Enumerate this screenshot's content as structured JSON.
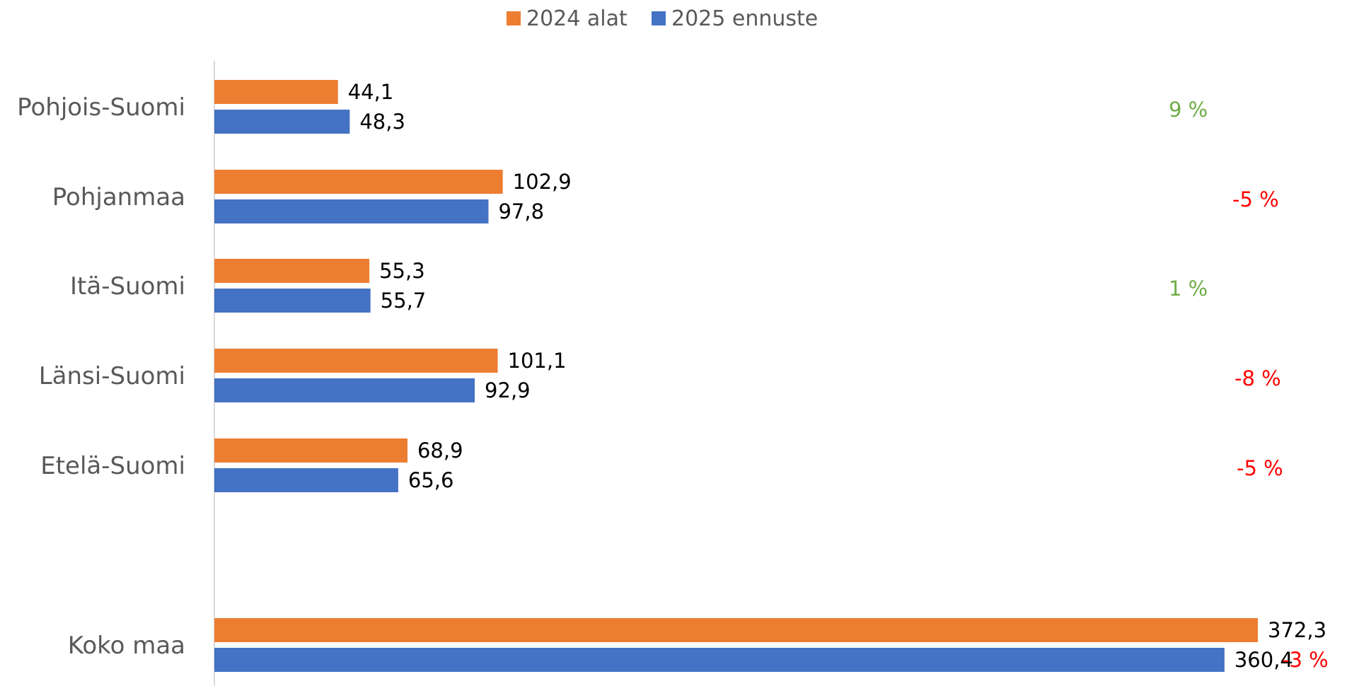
{
  "chart_data": {
    "type": "bar",
    "orientation": "horizontal",
    "categories": [
      "Pohjois-Suomi",
      "Pohjanmaa",
      "Itä-Suomi",
      "Länsi-Suomi",
      "Etelä-Suomi",
      "Koko maa"
    ],
    "series": [
      {
        "name": "2024 alat",
        "color": "#ED7D31",
        "values": [
          44.1,
          102.9,
          55.3,
          101.1,
          68.9,
          372.3
        ],
        "labels": [
          "44,1",
          "102,9",
          "55,3",
          "101,1",
          "68,9",
          "372,3"
        ]
      },
      {
        "name": "2025 ennuste",
        "color": "#4472C4",
        "values": [
          48.3,
          97.8,
          55.7,
          92.9,
          65.6,
          360.4
        ],
        "labels": [
          "48,3",
          "97,8",
          "55,7",
          "92,9",
          "65,6",
          "360,4"
        ]
      }
    ],
    "changes": [
      {
        "label": "9 %",
        "color": "#70AD47"
      },
      {
        "label": "-5 %",
        "color": "#FF0000"
      },
      {
        "label": "1 %",
        "color": "#70AD47"
      },
      {
        "label": "-8 %",
        "color": "#FF0000"
      },
      {
        "label": "-5 %",
        "color": "#FF0000"
      },
      {
        "label": "-3 %",
        "color": "#FF0000"
      }
    ],
    "xlim": [
      0,
      380
    ],
    "legend_position": "top-center",
    "grid": false,
    "axis_color": "#D9D9D9",
    "label_color": "#595959"
  }
}
